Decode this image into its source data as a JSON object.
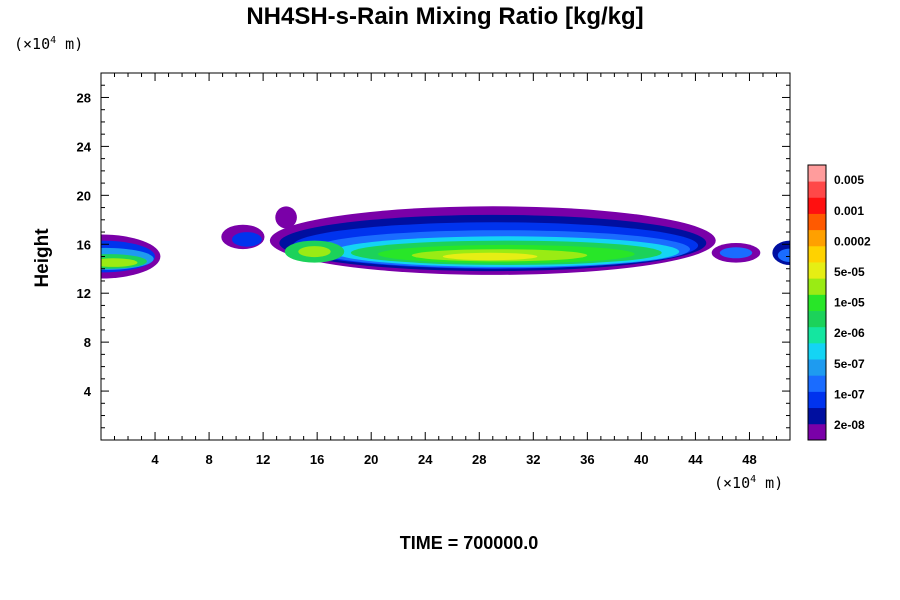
{
  "chart_data": {
    "type": "heatmap",
    "title": "NH4SH-s-Rain Mixing Ratio [kg/kg]",
    "xlabel": "",
    "ylabel": "Height",
    "x_unit_label": {
      "prefix": "(×10",
      "power": "4",
      "suffix": " m)"
    },
    "y_unit_label": {
      "prefix": "(×10",
      "power": "4",
      "suffix": " m)"
    },
    "xlim": [
      0,
      51
    ],
    "ylim": [
      0,
      30
    ],
    "x_ticks": [
      4,
      8,
      12,
      16,
      20,
      24,
      28,
      32,
      36,
      40,
      44,
      48
    ],
    "y_ticks": [
      4,
      8,
      12,
      16,
      20,
      24,
      28
    ],
    "footer": "TIME = 700000.0",
    "colorbar": {
      "colors": [
        "#7a00a8",
        "#000fa0",
        "#0033ee",
        "#1a6cff",
        "#1e9bf0",
        "#14d4f4",
        "#14e6a0",
        "#1cd25a",
        "#28e628",
        "#9aeb14",
        "#e6ee14",
        "#ffd200",
        "#ffa000",
        "#ff5a00",
        "#ff1010",
        "#ff4848",
        "#ff9c9c"
      ],
      "labels": [
        "2e-08",
        "1e-07",
        "5e-07",
        "2e-06",
        "1e-05",
        "5e-05",
        "0.0002",
        "0.001",
        "0.005"
      ]
    },
    "field": [
      {
        "x": 0,
        "y": 15.0,
        "rx": 4.4,
        "ry": 1.8,
        "level": 0
      },
      {
        "x": 0,
        "y": 15.0,
        "rx": 4.0,
        "ry": 1.3,
        "level": 2
      },
      {
        "x": 0.3,
        "y": 14.8,
        "rx": 3.6,
        "ry": 0.9,
        "level": 4
      },
      {
        "x": 0.6,
        "y": 14.6,
        "rx": 2.8,
        "ry": 0.6,
        "level": 7
      },
      {
        "x": 0.9,
        "y": 14.5,
        "rx": 1.8,
        "ry": 0.35,
        "level": 9
      },
      {
        "x": 10.5,
        "y": 16.6,
        "rx": 1.6,
        "ry": 1.0,
        "level": 0
      },
      {
        "x": 10.8,
        "y": 16.4,
        "rx": 1.1,
        "ry": 0.6,
        "level": 2
      },
      {
        "x": 29.0,
        "y": 16.3,
        "rx": 16.5,
        "ry": 2.8,
        "level": 0
      },
      {
        "x": 29.0,
        "y": 16.1,
        "rx": 15.8,
        "ry": 2.3,
        "level": 1
      },
      {
        "x": 29.2,
        "y": 15.9,
        "rx": 15.0,
        "ry": 1.9,
        "level": 2
      },
      {
        "x": 29.6,
        "y": 15.6,
        "rx": 14.0,
        "ry": 1.55,
        "level": 3
      },
      {
        "x": 30.0,
        "y": 15.4,
        "rx": 12.8,
        "ry": 1.25,
        "level": 5
      },
      {
        "x": 30.0,
        "y": 15.3,
        "rx": 11.5,
        "ry": 1.0,
        "level": 7
      },
      {
        "x": 30.0,
        "y": 15.2,
        "rx": 9.5,
        "ry": 0.75,
        "level": 8
      },
      {
        "x": 29.5,
        "y": 15.1,
        "rx": 6.5,
        "ry": 0.5,
        "level": 9
      },
      {
        "x": 28.8,
        "y": 15.0,
        "rx": 3.5,
        "ry": 0.3,
        "level": 10
      },
      {
        "x": 15.8,
        "y": 15.4,
        "rx": 2.2,
        "ry": 0.9,
        "level": 7
      },
      {
        "x": 15.8,
        "y": 15.4,
        "rx": 1.2,
        "ry": 0.45,
        "level": 9
      },
      {
        "x": 13.7,
        "y": 18.2,
        "rx": 0.8,
        "ry": 0.9,
        "level": 0
      },
      {
        "x": 47.0,
        "y": 15.3,
        "rx": 1.8,
        "ry": 0.8,
        "level": 0
      },
      {
        "x": 47.0,
        "y": 15.3,
        "rx": 1.2,
        "ry": 0.45,
        "level": 3
      },
      {
        "x": 51.0,
        "y": 15.3,
        "rx": 1.3,
        "ry": 1.0,
        "level": 1
      },
      {
        "x": 51.0,
        "y": 15.1,
        "rx": 0.9,
        "ry": 0.55,
        "level": 3
      }
    ]
  }
}
